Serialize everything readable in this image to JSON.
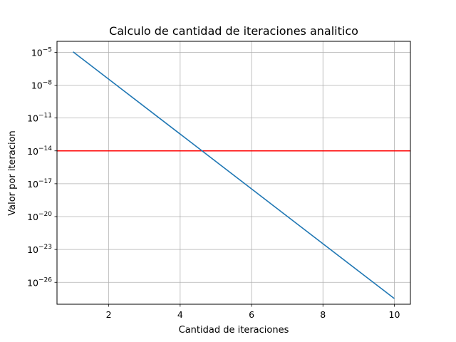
{
  "chart_data": {
    "type": "line",
    "title": "Calculo de cantidad de iteraciones analitico",
    "xlabel": "Cantidad de iteraciones",
    "ylabel": "Valor por iteracion",
    "yscale": "log",
    "grid": true,
    "xlim": [
      0.55,
      10.45
    ],
    "ylim": [
      1e-28,
      0.0001
    ],
    "xticks": [
      2,
      4,
      6,
      8,
      10
    ],
    "xtick_labels": [
      "2",
      "4",
      "6",
      "8",
      "10"
    ],
    "yticks": [
      1e-26,
      1e-23,
      1e-20,
      1e-17,
      1e-14,
      1e-11,
      1e-08,
      1e-05
    ],
    "ytick_labels": [
      {
        "base": "10",
        "exp": "−26"
      },
      {
        "base": "10",
        "exp": "−23"
      },
      {
        "base": "10",
        "exp": "−20"
      },
      {
        "base": "10",
        "exp": "−17"
      },
      {
        "base": "10",
        "exp": "−14"
      },
      {
        "base": "10",
        "exp": "−11"
      },
      {
        "base": "10",
        "exp": "−8"
      },
      {
        "base": "10",
        "exp": "−5"
      }
    ],
    "series": [
      {
        "color": "#1f77b4",
        "x": [
          1,
          10
        ],
        "y": [
          1.1e-05,
          3.3e-28
        ]
      }
    ],
    "hlines": [
      {
        "y": 1e-14,
        "color": "#ff0000"
      }
    ]
  }
}
